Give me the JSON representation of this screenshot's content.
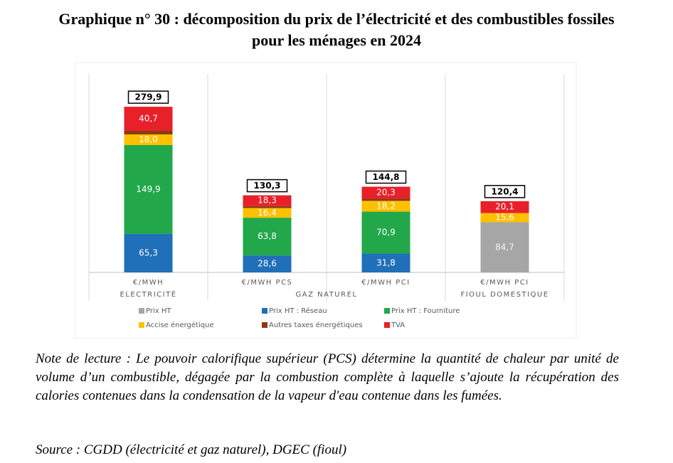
{
  "chart_data": {
    "type": "stacked-bar",
    "title": "Graphique n° 30 :  décomposition du prix de l’électricité et des combustibles fossiles pour les ménages en 2024",
    "categories": [
      "€/MWH",
      "€/MWH PCS",
      "€/MWH PCI",
      "€/MWH PCI"
    ],
    "group_labels": [
      "ELECTRICITÉ",
      "GAZ NATUREL",
      "FIOUL DOMESTIQUE"
    ],
    "series": [
      {
        "name": "Prix HT",
        "color": "#a6a6a6",
        "values": [
          null,
          null,
          null,
          84.7
        ],
        "value_labels": [
          null,
          null,
          null,
          "84,7"
        ]
      },
      {
        "name": "Prix HT : Réseau",
        "color": "#1f6fb9",
        "values": [
          65.3,
          28.6,
          31.8,
          null
        ],
        "value_labels": [
          "65,3",
          "28,6",
          "31,8",
          null
        ]
      },
      {
        "name": "Prix HT : Fourniture",
        "color": "#22a84a",
        "values": [
          149.9,
          63.8,
          70.9,
          null
        ],
        "value_labels": [
          "149,9",
          "63,8",
          "70,9",
          null
        ]
      },
      {
        "name": "Accise énergétique",
        "color": "#ffc000",
        "values": [
          18.0,
          16.4,
          18.2,
          15.6
        ],
        "value_labels": [
          "18,0",
          "16,4",
          "18,2",
          "15,6"
        ]
      },
      {
        "name": "Autres taxes énergétiques",
        "color": "#8b3a0f",
        "values": [
          6.0,
          3.2,
          3.6,
          null
        ],
        "value_labels": [
          null,
          null,
          null,
          null
        ]
      },
      {
        "name": "TVA",
        "color": "#e8202a",
        "values": [
          40.7,
          18.3,
          20.3,
          20.1
        ],
        "value_labels": [
          "40,7",
          "18,3",
          "20,3",
          "20,1"
        ]
      }
    ],
    "totals": {
      "values": [
        279.9,
        130.3,
        144.8,
        120.4
      ],
      "value_labels": [
        "279,9",
        "130,3",
        "144,8",
        "120,4"
      ]
    }
  },
  "note": "Note de lecture : Le pouvoir calorifique supérieur (PCS) détermine la quantité de chaleur par unité de volume d’un combustible, dégagée par la combustion complète à laquelle s’ajoute la récupération des calories contenues dans la condensation de la vapeur d'eau contenue dans les fumées.",
  "source": "Source : CGDD (électricité et gaz naturel), DGEC (fioul)"
}
